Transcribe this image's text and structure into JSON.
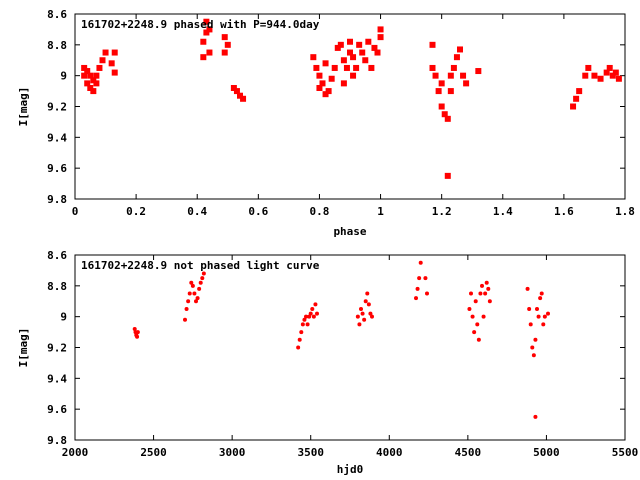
{
  "chart_data": [
    {
      "type": "scatter",
      "title": "161702+2248.9 phased with P=944.0day",
      "xlabel": "phase",
      "ylabel": "I[mag]",
      "xlim": [
        0,
        1.8
      ],
      "ylim": [
        9.8,
        8.6
      ],
      "y_inverted": true,
      "grid": false,
      "marker_color": "#ff0000",
      "x_ticks": [
        "0",
        "0.2",
        "0.4",
        "0.6",
        "0.8",
        "1",
        "1.2",
        "1.4",
        "1.6",
        "1.8"
      ],
      "y_ticks": [
        "8.6",
        "8.8",
        "9",
        "9.2",
        "9.4",
        "9.6",
        "9.8"
      ],
      "x": [
        0.03,
        0.03,
        0.04,
        0.04,
        0.05,
        0.05,
        0.06,
        0.06,
        0.07,
        0.07,
        0.08,
        0.09,
        0.1,
        0.12,
        0.13,
        0.13,
        0.42,
        0.42,
        0.43,
        0.43,
        0.44,
        0.44,
        0.49,
        0.49,
        0.5,
        0.52,
        0.53,
        0.54,
        0.55,
        0.78,
        0.79,
        0.8,
        0.8,
        0.81,
        0.82,
        0.82,
        0.83,
        0.84,
        0.85,
        0.86,
        0.87,
        0.88,
        0.88,
        0.89,
        0.9,
        0.9,
        0.91,
        0.91,
        0.92,
        0.93,
        0.94,
        0.95,
        0.96,
        0.97,
        0.98,
        0.99,
        1.0,
        1.0,
        1.17,
        1.17,
        1.18,
        1.19,
        1.2,
        1.2,
        1.21,
        1.22,
        1.23,
        1.23,
        1.24,
        1.25,
        1.26,
        1.27,
        1.28,
        1.32,
        1.22,
        1.63,
        1.64,
        1.65,
        1.67,
        1.68,
        1.7,
        1.72,
        1.74,
        1.75,
        1.76,
        1.77,
        1.78
      ],
      "y": [
        8.95,
        9.0,
        8.97,
        9.05,
        9.0,
        9.08,
        9.03,
        9.1,
        9.05,
        9.0,
        8.95,
        8.9,
        8.85,
        8.92,
        8.98,
        8.85,
        8.88,
        8.78,
        8.72,
        8.65,
        8.7,
        8.85,
        8.75,
        8.85,
        8.8,
        9.08,
        9.1,
        9.13,
        9.15,
        8.88,
        8.95,
        9.0,
        9.08,
        9.05,
        8.92,
        9.12,
        9.1,
        9.02,
        8.95,
        8.82,
        8.8,
        8.9,
        9.05,
        8.95,
        8.85,
        8.78,
        9.0,
        8.88,
        8.95,
        8.8,
        8.85,
        8.9,
        8.78,
        8.95,
        8.82,
        8.85,
        8.7,
        8.75,
        8.8,
        8.95,
        9.0,
        9.1,
        9.2,
        9.05,
        9.25,
        9.28,
        9.1,
        9.0,
        8.95,
        8.88,
        8.83,
        9.0,
        9.05,
        8.97,
        9.65,
        9.2,
        9.15,
        9.1,
        9.0,
        8.95,
        9.0,
        9.02,
        8.98,
        8.95,
        9.0,
        8.98,
        9.02
      ]
    },
    {
      "type": "scatter",
      "title": "161702+2248.9 not phased light curve",
      "xlabel": "hjd0",
      "ylabel": "I[mag]",
      "xlim": [
        2000,
        5500
      ],
      "ylim": [
        9.8,
        8.6
      ],
      "y_inverted": true,
      "grid": false,
      "marker_color": "#ff0000",
      "x_ticks": [
        "2000",
        "2500",
        "3000",
        "3500",
        "4000",
        "4500",
        "5000",
        "5500"
      ],
      "y_ticks": [
        "8.6",
        "8.8",
        "9",
        "9.2",
        "9.4",
        "9.6",
        "9.8"
      ],
      "x": [
        2380,
        2385,
        2390,
        2395,
        2400,
        2700,
        2710,
        2720,
        2730,
        2740,
        2750,
        2760,
        2770,
        2780,
        2790,
        2800,
        2810,
        2820,
        3420,
        3430,
        3440,
        3450,
        3460,
        3470,
        3480,
        3490,
        3500,
        3510,
        3520,
        3530,
        3540,
        3800,
        3810,
        3820,
        3830,
        3840,
        3850,
        3860,
        3870,
        3880,
        3890,
        4170,
        4180,
        4190,
        4200,
        4230,
        4240,
        4510,
        4520,
        4530,
        4540,
        4550,
        4560,
        4570,
        4580,
        4590,
        4600,
        4610,
        4620,
        4630,
        4640,
        4880,
        4890,
        4900,
        4910,
        4920,
        4930,
        4940,
        4950,
        4960,
        4970,
        4980,
        4990,
        5010,
        4930
      ],
      "y": [
        9.08,
        9.1,
        9.12,
        9.13,
        9.1,
        9.02,
        8.95,
        8.9,
        8.85,
        8.78,
        8.8,
        8.85,
        8.9,
        8.88,
        8.82,
        8.78,
        8.75,
        8.72,
        9.2,
        9.15,
        9.1,
        9.05,
        9.02,
        9.0,
        9.05,
        9.0,
        8.98,
        8.95,
        9.0,
        8.92,
        8.98,
        9.0,
        9.05,
        8.95,
        8.98,
        9.02,
        8.9,
        8.85,
        8.92,
        8.98,
        9.0,
        8.88,
        8.82,
        8.75,
        8.65,
        8.75,
        8.85,
        8.95,
        8.85,
        9.0,
        9.1,
        8.9,
        9.05,
        9.15,
        8.85,
        8.8,
        9.0,
        8.85,
        8.78,
        8.82,
        8.9,
        8.82,
        8.95,
        9.05,
        9.2,
        9.25,
        9.15,
        8.95,
        9.0,
        8.88,
        8.85,
        9.05,
        9.0,
        8.98,
        9.65
      ]
    }
  ]
}
